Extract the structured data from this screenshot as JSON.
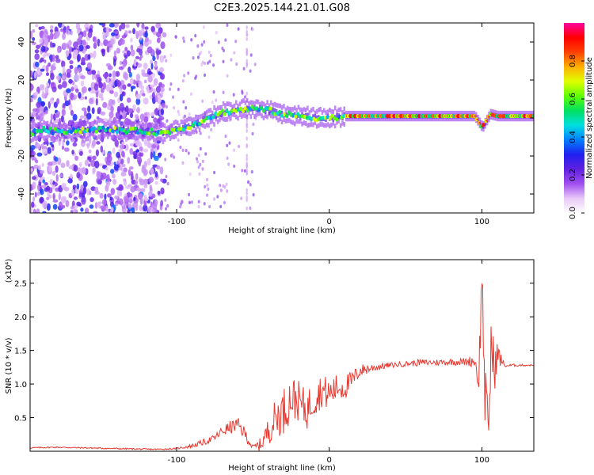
{
  "title": "C2E3.2025.144.21.01.G08",
  "chart_data": [
    {
      "type": "heatmap",
      "xlabel": "Height of straight line (km)",
      "ylabel": "Frequency (Hz)",
      "xlim": [
        -196,
        134
      ],
      "ylim": [
        -50,
        50
      ],
      "xticks": [
        -100,
        0,
        100
      ],
      "yticks": [
        -40,
        -20,
        0,
        20,
        40
      ],
      "colorbar": {
        "label": "Normalized spectral amplitude",
        "range": [
          0,
          1
        ],
        "ticks": [
          "0.0",
          "0.2",
          "0.4",
          "0.6",
          "0.8"
        ],
        "colormap": [
          "#ffffff",
          "#e8c8f8",
          "#a050f0",
          "#6020e0",
          "#2020f0",
          "#0080ff",
          "#00e0e0",
          "#00e060",
          "#60ff00",
          "#e0ff00",
          "#ffb000",
          "#ff4000",
          "#ff0000",
          "#ff00a0"
        ]
      },
      "ridge": {
        "x": [
          -196,
          -190,
          -180,
          -150,
          -120,
          -108,
          -100,
          -90,
          -80,
          -70,
          -60,
          -50,
          -40,
          -30,
          -20,
          -10,
          0,
          10,
          40,
          80,
          95,
          100,
          105,
          110,
          134
        ],
        "y": [
          -8,
          -6,
          -7,
          -6,
          -7,
          -8,
          -6,
          -4,
          0,
          3,
          4,
          5,
          4,
          2,
          1,
          0,
          0,
          1,
          1,
          1,
          1,
          -5,
          2,
          1,
          1
        ]
      }
    },
    {
      "type": "line",
      "xlabel": "Height of straight line (km)",
      "ylabel": "SNR (10 * v/v)",
      "y_multiplier": "(x10⁴)",
      "xlim": [
        -196,
        134
      ],
      "ylim": [
        0,
        2.85
      ],
      "xticks": [
        -100,
        0,
        100
      ],
      "yticks": [
        0.5,
        1.0,
        1.5,
        2.0,
        2.5
      ],
      "ytick_labels": [
        "0.5",
        "1.0",
        "1.5",
        "2.0",
        "2.5"
      ],
      "series": [
        {
          "color": "#e8382f",
          "x": [
            -196,
            -180,
            -160,
            -140,
            -120,
            -110,
            -100,
            -90,
            -80,
            -75,
            -70,
            -65,
            -60,
            -55,
            -50,
            -45,
            -40,
            -35,
            -30,
            -25,
            -20,
            -15,
            -10,
            -5,
            0,
            5,
            10,
            15,
            20,
            30,
            40,
            50,
            60,
            70,
            80,
            90,
            95,
            98,
            100,
            102,
            104,
            106,
            108,
            110,
            115,
            120,
            134
          ],
          "y": [
            0.05,
            0.06,
            0.05,
            0.04,
            0.03,
            0.03,
            0.04,
            0.08,
            0.15,
            0.2,
            0.3,
            0.35,
            0.4,
            0.25,
            0.05,
            0.1,
            0.3,
            0.5,
            0.6,
            0.8,
            0.75,
            0.6,
            0.8,
            0.9,
            0.85,
            0.95,
            0.95,
            1.05,
            1.2,
            1.25,
            1.28,
            1.3,
            1.32,
            1.32,
            1.33,
            1.33,
            1.35,
            1.1,
            2.6,
            0.9,
            0.15,
            1.6,
            1.2,
            1.45,
            1.27,
            1.28,
            1.28
          ],
          "noise": [
            0.01,
            0.01,
            0.01,
            0.01,
            0.01,
            0.01,
            0.01,
            0.03,
            0.05,
            0.05,
            0.08,
            0.1,
            0.1,
            0.1,
            0.05,
            0.1,
            0.2,
            0.3,
            0.35,
            0.35,
            0.3,
            0.3,
            0.3,
            0.25,
            0.25,
            0.2,
            0.2,
            0.15,
            0.1,
            0.06,
            0.04,
            0.04,
            0.05,
            0.05,
            0.05,
            0.06,
            0.1,
            0.3,
            0.4,
            0.6,
            0.5,
            0.6,
            0.4,
            0.2,
            0.02,
            0.02,
            0.01
          ]
        }
      ]
    }
  ]
}
